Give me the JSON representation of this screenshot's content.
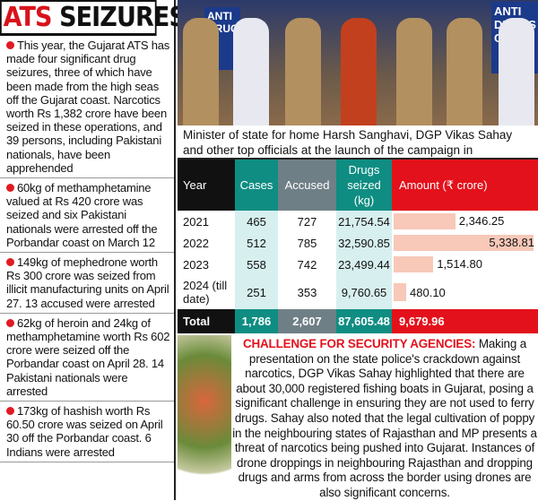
{
  "title": {
    "part1": "ATS",
    "part2": " SEIZURES"
  },
  "bullets": [
    "This year, the Gujarat ATS has made four significant drug seizures, three of which have been made from the high seas off the Gujarat coast. Narcotics worth Rs 1,382 crore have been seized in these operations, and 39 persons, including Pakistani nationals, have been apprehended",
    "60kg of methamphetamine valued at Rs 420 crore was seized and six Pakistani nationals were arrested off the Porbandar coast on March 12",
    "149kg of mephedrone worth Rs 300 crore was seized from illicit manufacturing units on April 27. 13 accused were arrested",
    "62kg of heroin and 24kg of methamphetamine worth Rs 602 crore were seized off the Porbandar coast on April 28. 14 Pakistani nationals were arrested",
    "173kg of hashish worth Rs 60.50 crore was seized on April 30 off the Porbandar coast. 6 Indians were arrested"
  ],
  "photo": {
    "banner_left": "ANTI DRUGS",
    "banner_right": "ANTI DRUGS CA"
  },
  "caption": "Minister of state for home Harsh Sanghavi, DGP Vikas Sahay and other top officials at the launch of the campaign in Ahmedabad",
  "table": {
    "headers": [
      "Year",
      "Cases",
      "Accused",
      "Drugs seized (kg)",
      "Amount (₹ crore)"
    ],
    "rows": [
      {
        "year": "2021",
        "cases": "465",
        "accused": "727",
        "drugs": "21,754.54",
        "amount": "2,346.25",
        "value": 2346.25
      },
      {
        "year": "2022",
        "cases": "512",
        "accused": "785",
        "drugs": "32,590.85",
        "amount": "5,338.81",
        "value": 5338.81
      },
      {
        "year": "2023",
        "cases": "558",
        "accused": "742",
        "drugs": "23,499.44",
        "amount": "1,514.80",
        "value": 1514.8
      },
      {
        "year": "2024 (till date)",
        "cases": "251",
        "accused": "353",
        "drugs": "9,760.65",
        "amount": "480.10",
        "value": 480.1
      }
    ],
    "total": {
      "year": "Total",
      "cases": "1,786",
      "accused": "2,607",
      "drugs": "87,605.48",
      "amount": "9,679.96"
    }
  },
  "challenge": {
    "heading": "CHALLENGE FOR SECURITY AGENCIES:",
    "text": " Making a presentation on the state police's crackdown against narcotics, DGP Vikas Sahay highlighted that there are about 30,000 registered fishing boats in Gujarat, posing a significant challenge in ensuring they are not used to ferry drugs. Sahay also noted that the legal cultivation of poppy in the neighbouring states of Rajasthan and MP presents a threat of narcotics being pushed into Gujarat. Instances of drone droppings in neighbouring Rajasthan and dropping drugs and arms from across the border using drones are also significant concerns."
  },
  "colors": {
    "red": "#e3111b",
    "teal": "#0f8d82",
    "grey": "#6f7f86",
    "bar": "#f8c8b8"
  }
}
